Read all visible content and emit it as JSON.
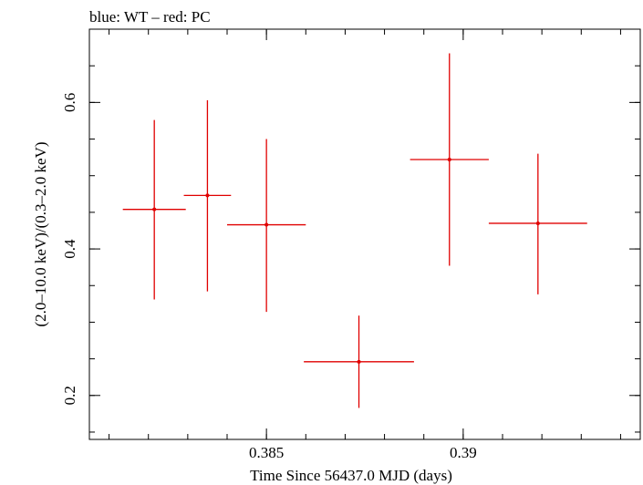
{
  "chart_data": {
    "type": "scatter",
    "title": "blue: WT – red: PC",
    "xlabel": "Time Since 56437.0 MJD (days)",
    "ylabel": "(2.0–10.0 keV)/(0.3–2.0 keV)",
    "xlim": [
      0.3805,
      0.3945
    ],
    "ylim": [
      0.14,
      0.7
    ],
    "xticks": [
      {
        "value": 0.385,
        "label": "0.385"
      },
      {
        "value": 0.39,
        "label": "0.39"
      }
    ],
    "yticks": [
      {
        "value": 0.2,
        "label": "0.2"
      },
      {
        "value": 0.4,
        "label": "0.4"
      },
      {
        "value": 0.6,
        "label": "0.6"
      }
    ],
    "x_minor_step": 0.001,
    "y_minor_step": 0.05,
    "series": [
      {
        "color": "#e00000",
        "points": [
          {
            "x": 0.38215,
            "xerr": 0.0008,
            "y": 0.454,
            "yerr_low": 0.123,
            "yerr_high": 0.122
          },
          {
            "x": 0.3835,
            "xerr": 0.0006,
            "y": 0.473,
            "yerr_low": 0.131,
            "yerr_high": 0.13
          },
          {
            "x": 0.385,
            "xerr": 0.001,
            "y": 0.433,
            "yerr_low": 0.119,
            "yerr_high": 0.117
          },
          {
            "x": 0.38735,
            "xerr": 0.0014,
            "y": 0.246,
            "yerr_low": 0.063,
            "yerr_high": 0.063
          },
          {
            "x": 0.38965,
            "xerr": 0.001,
            "y": 0.522,
            "yerr_low": 0.145,
            "yerr_high": 0.145
          },
          {
            "x": 0.3919,
            "xerr": 0.00125,
            "y": 0.435,
            "yerr_low": 0.097,
            "yerr_high": 0.095
          }
        ]
      }
    ]
  }
}
